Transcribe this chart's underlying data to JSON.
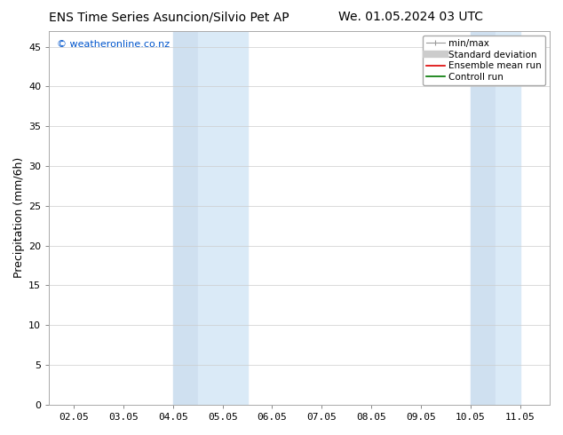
{
  "title_left": "ENS Time Series Asuncion/Silvio Pet AP",
  "title_right": "We. 01.05.2024 03 UTC",
  "ylabel": "Precipitation (mm/6h)",
  "watermark": "© weatheronline.co.nz",
  "x_tick_labels": [
    "02.05",
    "03.05",
    "04.05",
    "05.05",
    "06.05",
    "07.05",
    "08.05",
    "09.05",
    "10.05",
    "11.05"
  ],
  "x_tick_positions": [
    1,
    2,
    3,
    4,
    5,
    6,
    7,
    8,
    9,
    10
  ],
  "x_min": 0.5,
  "x_max": 10.6,
  "y_min": 0,
  "y_max": 47,
  "y_ticks": [
    0,
    5,
    10,
    15,
    20,
    25,
    30,
    35,
    40,
    45
  ],
  "shaded_regions": [
    {
      "x_start": 3.0,
      "x_end": 3.5,
      "color": "#cfe0f0",
      "alpha": 1.0
    },
    {
      "x_start": 3.5,
      "x_end": 4.5,
      "color": "#daeaf7",
      "alpha": 1.0
    },
    {
      "x_start": 9.0,
      "x_end": 9.5,
      "color": "#cfe0f0",
      "alpha": 1.0
    },
    {
      "x_start": 9.5,
      "x_end": 10.0,
      "color": "#daeaf7",
      "alpha": 1.0
    }
  ],
  "background_color": "#ffffff",
  "plot_bg_color": "#ffffff",
  "watermark_color": "#0055cc",
  "font_size_title": 10,
  "font_size_ylabel": 9,
  "font_size_ticks": 8,
  "font_size_legend": 7.5,
  "font_size_watermark": 8
}
